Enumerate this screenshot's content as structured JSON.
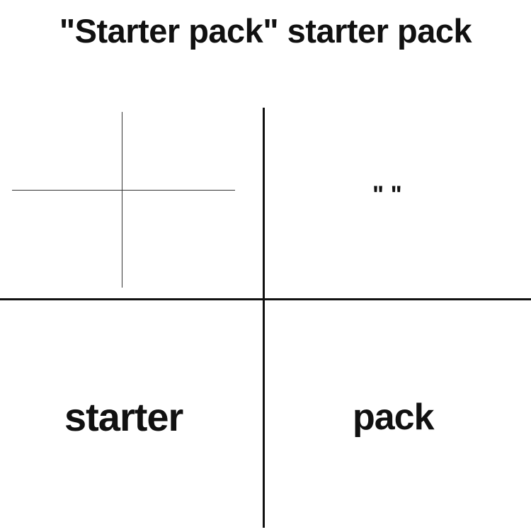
{
  "title": "\"Starter pack\" starter pack",
  "panels": {
    "top_right": "\" \"",
    "bottom_left": "starter",
    "bottom_right": "pack"
  }
}
